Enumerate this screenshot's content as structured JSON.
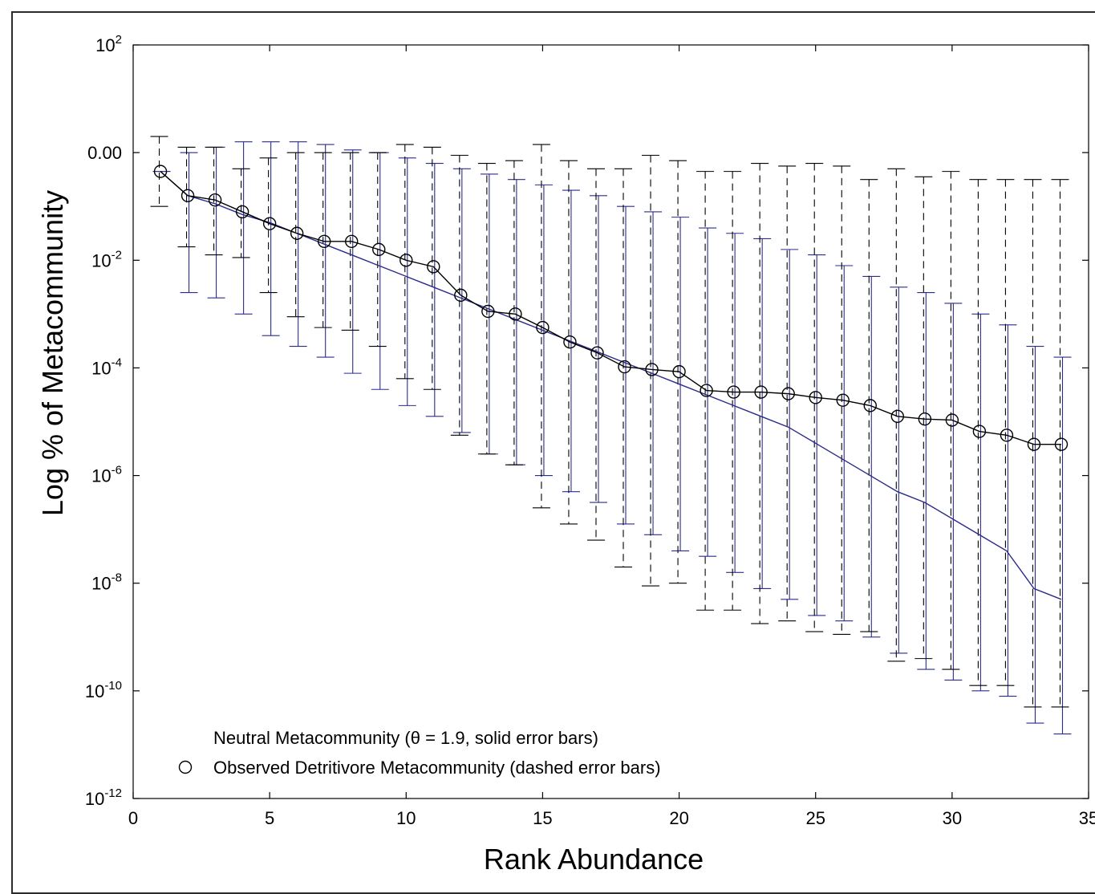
{
  "chart_data": {
    "type": "line",
    "xlabel": "Rank Abundance",
    "ylabel": "Log % of Metacommunity",
    "xlim": [
      0,
      35
    ],
    "ylim_log10": [
      -12,
      2
    ],
    "y_scale": "log",
    "x_ticks": [
      0,
      5,
      10,
      15,
      20,
      25,
      30,
      35
    ],
    "x_tick_labels": [
      "0",
      "5",
      "10",
      "15",
      "20",
      "25",
      "30",
      "35"
    ],
    "y_ticks": [
      {
        "log10": 2,
        "base": "10",
        "exp": "2"
      },
      {
        "log10": 0,
        "plain": "0.00"
      },
      {
        "log10": -2,
        "base": "10",
        "exp": "-2"
      },
      {
        "log10": -4,
        "base": "10",
        "exp": "-4"
      },
      {
        "log10": -6,
        "base": "10",
        "exp": "-6"
      },
      {
        "log10": -8,
        "base": "10",
        "exp": "-8"
      },
      {
        "log10": -10,
        "base": "10",
        "exp": "-10"
      },
      {
        "log10": -12,
        "base": "10",
        "exp": "-12"
      }
    ],
    "legend_placement": "bottom-left",
    "series": [
      {
        "name": "Neutral Metacommunity (θ = 1.9, solid error bars)",
        "color": "#2b2b8c",
        "marker": "none",
        "x": [
          1,
          2,
          3,
          4,
          5,
          6,
          7,
          8,
          9,
          10,
          11,
          12,
          13,
          14,
          15,
          16,
          17,
          18,
          19,
          20,
          21,
          22,
          23,
          24,
          25,
          26,
          27,
          28,
          29,
          30,
          31,
          32,
          33,
          34
        ],
        "log10_y": [
          -0.35,
          -0.8,
          -0.95,
          -1.15,
          -1.3,
          -1.5,
          -1.7,
          -1.9,
          -2.1,
          -2.3,
          -2.5,
          -2.7,
          -2.9,
          -3.1,
          -3.3,
          -3.5,
          -3.7,
          -3.9,
          -4.1,
          -4.3,
          -4.5,
          -4.7,
          -4.9,
          -5.1,
          -5.4,
          -5.7,
          -6.0,
          -6.3,
          -6.5,
          -6.8,
          -7.1,
          -7.4,
          -8.1,
          -8.3
        ],
        "err_low_log10": [
          -0.35,
          -2.6,
          -2.7,
          -3.0,
          -3.4,
          -3.6,
          -3.8,
          -4.1,
          -4.4,
          -4.7,
          -4.9,
          -5.2,
          -5.6,
          -5.8,
          -6.0,
          -6.3,
          -6.5,
          -6.9,
          -7.1,
          -7.4,
          -7.5,
          -7.8,
          -8.1,
          -8.3,
          -8.6,
          -8.7,
          -9.0,
          -9.3,
          -9.6,
          -9.8,
          -10.0,
          -10.1,
          -10.6,
          -10.8
        ],
        "err_high_log10": [
          -0.35,
          0.0,
          0.1,
          0.2,
          0.2,
          0.2,
          0.15,
          0.05,
          0.0,
          -0.1,
          -0.2,
          -0.3,
          -0.4,
          -0.5,
          -0.6,
          -0.7,
          -0.8,
          -1.0,
          -1.1,
          -1.2,
          -1.4,
          -1.5,
          -1.6,
          -1.8,
          -1.9,
          -2.1,
          -2.3,
          -2.5,
          -2.6,
          -2.8,
          -3.0,
          -3.2,
          -3.6,
          -3.8
        ]
      },
      {
        "name": "Observed Detritivore Metacommunity (dashed error bars)",
        "color": "#000000",
        "marker": "open-circle",
        "x": [
          1,
          2,
          3,
          4,
          5,
          6,
          7,
          8,
          9,
          10,
          11,
          12,
          13,
          14,
          15,
          16,
          17,
          18,
          19,
          20,
          21,
          22,
          23,
          24,
          25,
          26,
          27,
          28,
          29,
          30,
          31,
          32,
          33,
          34
        ],
        "log10_y": [
          -0.35,
          -0.8,
          -0.88,
          -1.1,
          -1.32,
          -1.5,
          -1.65,
          -1.65,
          -1.8,
          -2.0,
          -2.12,
          -2.65,
          -2.95,
          -3.0,
          -3.25,
          -3.52,
          -3.72,
          -3.98,
          -4.03,
          -4.07,
          -4.42,
          -4.45,
          -4.45,
          -4.48,
          -4.55,
          -4.6,
          -4.7,
          -4.9,
          -4.95,
          -4.97,
          -5.18,
          -5.25,
          -5.42,
          -5.42
        ],
        "err_low_log10": [
          -1.0,
          -1.75,
          -1.9,
          -1.95,
          -2.6,
          -3.05,
          -3.25,
          -3.3,
          -3.6,
          -4.2,
          -4.4,
          -5.25,
          -5.6,
          -5.8,
          -6.6,
          -6.9,
          -7.2,
          -7.7,
          -8.05,
          -8.0,
          -8.5,
          -8.5,
          -8.75,
          -8.7,
          -8.9,
          -8.95,
          -8.9,
          -9.45,
          -9.4,
          -9.6,
          -9.9,
          -9.9,
          -10.3,
          -10.3
        ],
        "err_high_log10": [
          0.3,
          0.1,
          0.1,
          -0.3,
          -0.1,
          0.0,
          0.0,
          0.0,
          0.0,
          0.15,
          0.1,
          -0.05,
          -0.2,
          -0.15,
          0.15,
          -0.15,
          -0.3,
          -0.3,
          -0.05,
          -0.15,
          -0.35,
          -0.35,
          -0.2,
          -0.25,
          -0.2,
          -0.25,
          -0.5,
          -0.3,
          -0.45,
          -0.35,
          -0.5,
          -0.5,
          -0.5,
          -0.5
        ]
      }
    ]
  },
  "legend": {
    "neutral_label": "Neutral Metacommunity (θ = 1.9, solid error bars)",
    "observed_label": "Observed Detritivore Metacommunity (dashed error bars)"
  }
}
